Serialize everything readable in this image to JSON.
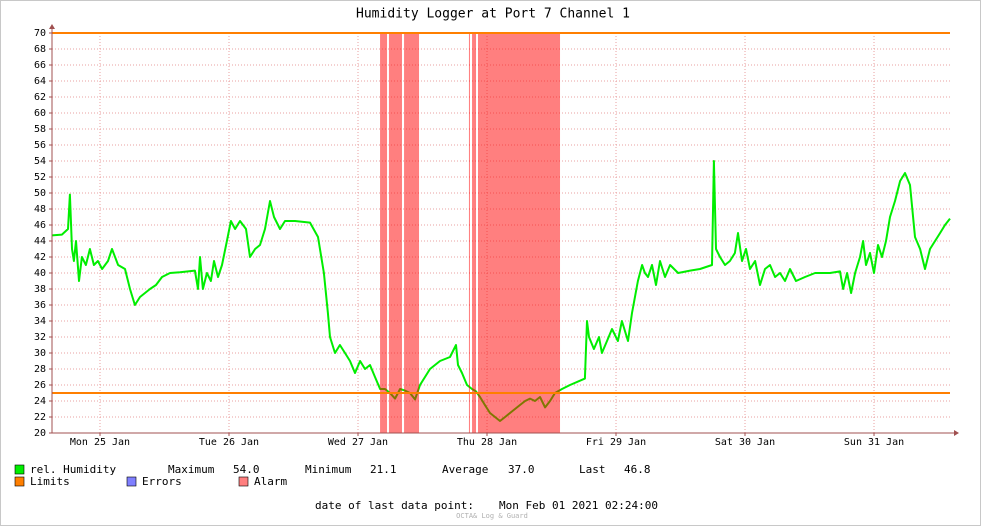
{
  "chart_data": {
    "type": "line",
    "title": "Humidity Logger at Port 7 Channel 1",
    "xlim": [
      0.128,
      7.089
    ],
    "xticks": [
      {
        "value": 0.5,
        "label": "Mon 25 Jan"
      },
      {
        "value": 1.5,
        "label": "Tue 26 Jan"
      },
      {
        "value": 2.5,
        "label": "Wed 27 Jan"
      },
      {
        "value": 3.5,
        "label": "Thu 28 Jan"
      },
      {
        "value": 4.5,
        "label": "Fri 29 Jan"
      },
      {
        "value": 5.5,
        "label": "Sat 30 Jan"
      },
      {
        "value": 6.5,
        "label": "Sun 31 Jan"
      }
    ],
    "ylim": [
      20,
      70
    ],
    "yticks": [
      20,
      22,
      24,
      26,
      28,
      30,
      32,
      34,
      36,
      38,
      40,
      42,
      44,
      46,
      48,
      50,
      52,
      54,
      56,
      58,
      60,
      62,
      64,
      66,
      68,
      70
    ],
    "grid": true,
    "series": [
      {
        "name": "rel. Humidity",
        "color": "#00ee00",
        "x": [
          0.128,
          0.205,
          0.252,
          0.267,
          0.283,
          0.298,
          0.314,
          0.337,
          0.36,
          0.391,
          0.422,
          0.453,
          0.484,
          0.516,
          0.562,
          0.593,
          0.64,
          0.694,
          0.733,
          0.771,
          0.81,
          0.849,
          0.888,
          0.934,
          0.981,
          1.043,
          1.12,
          1.236,
          1.26,
          1.275,
          1.298,
          1.329,
          1.36,
          1.384,
          1.415,
          1.446,
          1.484,
          1.515,
          1.547,
          1.585,
          1.632,
          1.663,
          1.702,
          1.74,
          1.779,
          1.818,
          1.849,
          1.895,
          1.934,
          2.012,
          2.128,
          2.19,
          2.236,
          2.267,
          2.283,
          2.322,
          2.36,
          2.399,
          2.438,
          2.477,
          2.516,
          2.554,
          2.593,
          2.632,
          2.671,
          2.709,
          2.748,
          2.787,
          2.826,
          2.864,
          2.903,
          2.942,
          2.981,
          3.019,
          3.058,
          3.136,
          3.213,
          3.26,
          3.275,
          3.306,
          3.345,
          3.384,
          3.415,
          3.446,
          3.484,
          3.523,
          3.562,
          3.601,
          3.64,
          3.678,
          3.717,
          3.756,
          3.795,
          3.833,
          3.872,
          3.911,
          3.95,
          3.988,
          4.027,
          4.081,
          4.143,
          4.259,
          4.275,
          4.291,
          4.329,
          4.368,
          4.391,
          4.43,
          4.469,
          4.515,
          4.546,
          4.593,
          4.624,
          4.67,
          4.702,
          4.724,
          4.748,
          4.779,
          4.81,
          4.841,
          4.88,
          4.919,
          4.981,
          5.074,
          5.151,
          5.244,
          5.259,
          5.275,
          5.306,
          5.345,
          5.383,
          5.422,
          5.446,
          5.477,
          5.508,
          5.539,
          5.578,
          5.616,
          5.655,
          5.694,
          5.733,
          5.771,
          5.81,
          5.849,
          5.895,
          5.965,
          6.043,
          6.159,
          6.236,
          6.26,
          6.291,
          6.322,
          6.353,
          6.391,
          6.415,
          6.438,
          6.469,
          6.5,
          6.531,
          6.562,
          6.593,
          6.624,
          6.663,
          6.702,
          6.74,
          6.779,
          6.818,
          6.857,
          6.895,
          6.934,
          7.012,
          7.05,
          7.089
        ],
        "values": [
          44.7,
          44.8,
          45.5,
          49.8,
          43,
          41.5,
          44,
          39,
          42,
          41,
          43,
          41,
          41.5,
          40.5,
          41.5,
          43,
          41,
          40.5,
          38,
          36,
          37,
          37.5,
          38,
          38.5,
          39.5,
          40,
          40.1,
          40.3,
          38,
          42,
          38,
          40,
          39,
          41.5,
          39.5,
          41,
          44,
          46.5,
          45.5,
          46.5,
          45.5,
          42,
          43,
          43.5,
          45.5,
          49,
          47,
          45.5,
          46.5,
          46.5,
          46.3,
          44.5,
          40,
          35,
          32,
          30,
          31,
          30,
          29,
          27.5,
          29,
          28,
          28.5,
          27,
          25.5,
          25.5,
          25,
          24.3,
          25.5,
          25.3,
          25,
          24.2,
          26,
          27,
          28,
          29,
          29.5,
          31,
          28.5,
          27.5,
          26,
          25.5,
          25.2,
          24.5,
          23.5,
          22.5,
          22,
          21.5,
          22,
          22.5,
          23,
          23.5,
          24,
          24.3,
          24,
          24.5,
          23.2,
          24,
          25,
          25.5,
          26,
          26.8,
          34,
          32,
          30.5,
          32,
          30,
          31.5,
          33,
          31.5,
          34,
          31.5,
          35,
          39,
          41,
          40,
          39.5,
          41,
          38.5,
          41.5,
          39.5,
          41,
          40,
          40.3,
          40.5,
          41,
          54,
          43,
          42,
          41,
          41.5,
          42.5,
          45,
          41.5,
          43,
          40.5,
          41.5,
          38.5,
          40.5,
          41,
          39.5,
          40,
          39,
          40.5,
          39,
          39.5,
          40,
          40,
          40.2,
          38,
          40,
          37.5,
          40,
          42,
          44,
          41,
          42.5,
          40,
          43.5,
          42,
          44,
          47,
          49,
          51.5,
          52.5,
          51,
          44.5,
          43,
          40.5,
          43,
          45,
          46,
          46.8
        ]
      }
    ],
    "limits": {
      "name": "Limits",
      "color": "#ff7f00",
      "values": [
        25,
        70
      ]
    },
    "errors": {
      "name": "Errors",
      "color": "#7f7fff"
    },
    "alarm": {
      "name": "Alarm",
      "color": "#ff0000",
      "spans": [
        [
          2.671,
          2.725
        ],
        [
          2.74,
          2.841
        ],
        [
          2.857,
          2.973
        ],
        [
          3.36,
          3.368
        ],
        [
          3.384,
          3.415
        ],
        [
          3.43,
          4.066
        ]
      ]
    },
    "stats": [
      {
        "label": "Maximum",
        "value": "54.0"
      },
      {
        "label": "Minimum",
        "value": "21.1"
      },
      {
        "label": "Average",
        "value": "37.0"
      },
      {
        "label": "Last",
        "value": "46.8"
      }
    ],
    "footer": {
      "label": "date of last data point:",
      "value": "Mon Feb 01 2021 02:24:00"
    },
    "watermark": "OCTA& Log & Guard"
  }
}
